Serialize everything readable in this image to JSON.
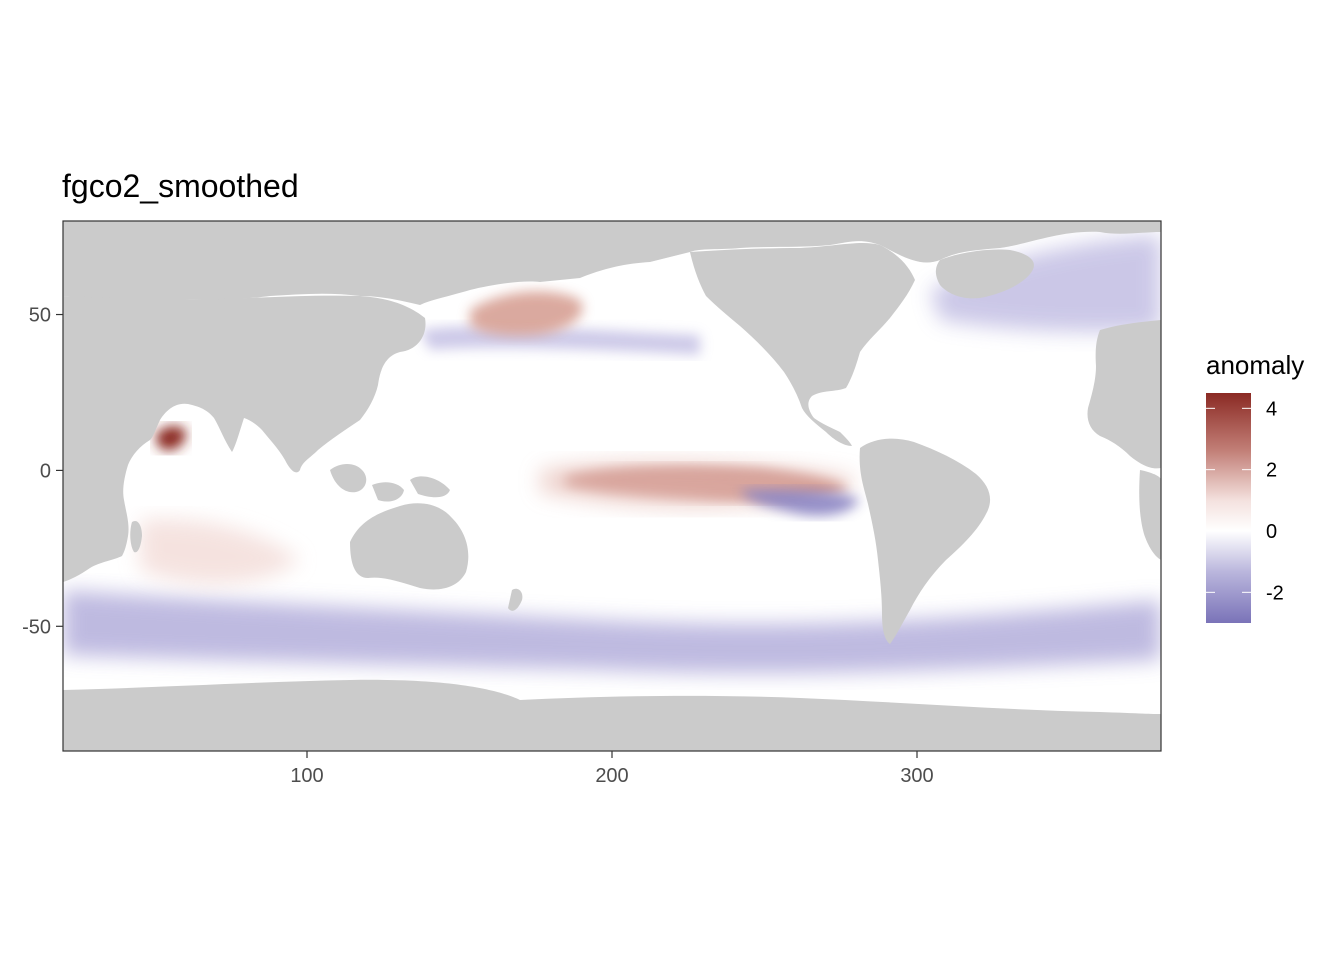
{
  "chart_data": {
    "type": "heatmap",
    "title": "fgco2_smoothed",
    "xlabel": "",
    "ylabel": "",
    "xlim": [
      20,
      380
    ],
    "ylim": [
      -90,
      80
    ],
    "x_ticks": [
      "100",
      "200",
      "300"
    ],
    "x_tick_values": [
      100,
      200,
      300
    ],
    "y_ticks": [
      "50",
      "0",
      "-50"
    ],
    "y_tick_values": [
      50,
      0,
      -50
    ],
    "legend": {
      "title": "anomaly",
      "labels": [
        "4",
        "2",
        "0",
        "-2"
      ],
      "values": [
        4,
        2,
        0,
        -2
      ],
      "range": [
        -3,
        4.5
      ],
      "colors": {
        "high": "#8b2a24",
        "mid": "#ffffff",
        "low": "#7a73b8"
      },
      "placement": "right"
    },
    "colors": {
      "land": "#cbcbcb",
      "ocean_base": "#ffffff"
    },
    "anomaly_features": [
      {
        "name": "equatorial pacific positive band",
        "lon": [
          185,
          290
        ],
        "lat": [
          -8,
          3
        ],
        "value": 2.6
      },
      {
        "name": "arabian sea coastal maximum",
        "lon": [
          52,
          60
        ],
        "lat": [
          8,
          16
        ],
        "value": 4.5
      },
      {
        "name": "north pacific subarctic positive",
        "lon": [
          165,
          200
        ],
        "lat": [
          45,
          60
        ],
        "value": 1.3
      },
      {
        "name": "eastern equatorial pacific negative",
        "lon": [
          250,
          285
        ],
        "lat": [
          -10,
          -2
        ],
        "value": -2.2
      },
      {
        "name": "southern ocean negative belt",
        "lon": [
          20,
          380
        ],
        "lat": [
          -65,
          -45
        ],
        "value": -1.5
      },
      {
        "name": "north atlantic subpolar negative",
        "lon": [
          300,
          370
        ],
        "lat": [
          50,
          65
        ],
        "value": -1.0
      }
    ]
  }
}
